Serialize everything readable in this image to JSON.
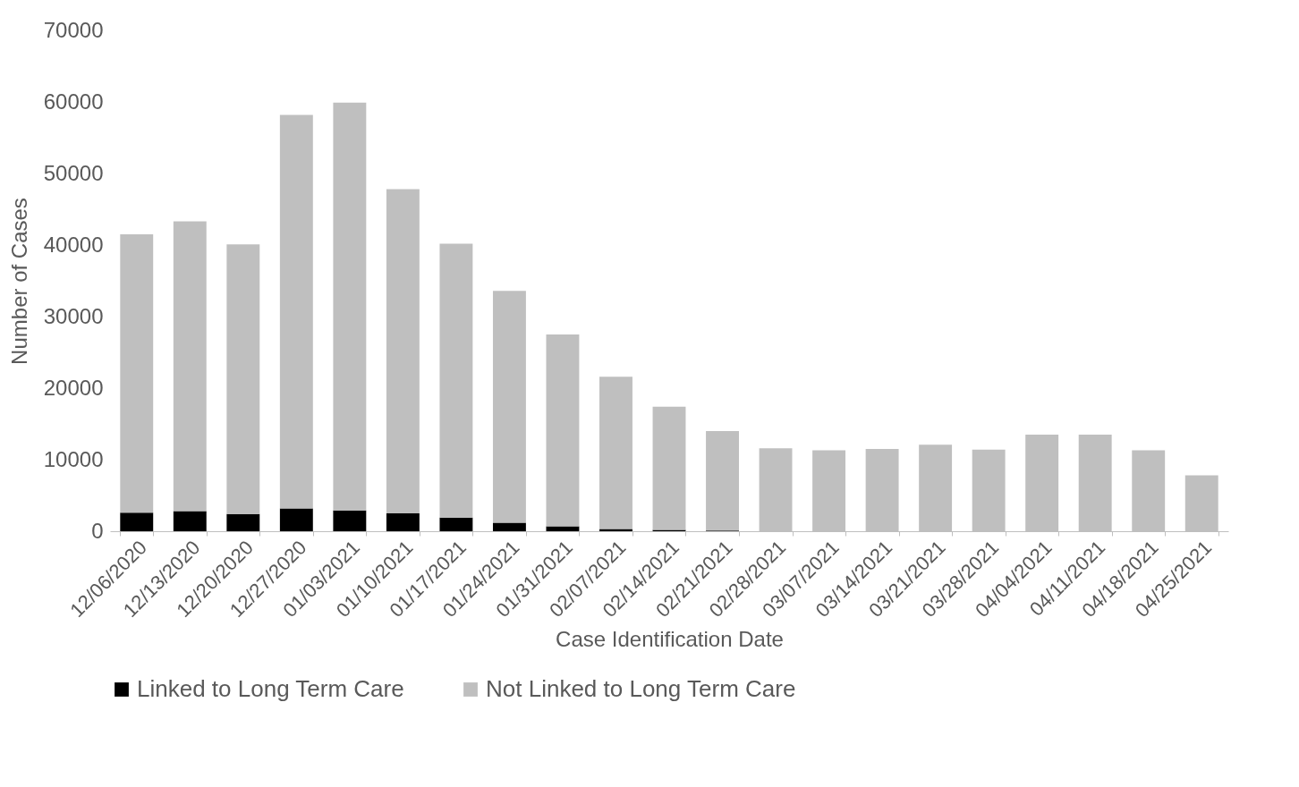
{
  "chart_data": {
    "type": "bar",
    "stacked": true,
    "xlabel": "Case Identification Date",
    "ylabel": "Number of Cases",
    "categories": [
      "12/06/2020",
      "12/13/2020",
      "12/20/2020",
      "12/27/2020",
      "01/03/2021",
      "01/10/2021",
      "01/17/2021",
      "01/24/2021",
      "01/31/2021",
      "02/07/2021",
      "02/14/2021",
      "02/21/2021",
      "02/28/2021",
      "03/07/2021",
      "03/14/2021",
      "03/21/2021",
      "03/28/2021",
      "04/04/2021",
      "04/11/2021",
      "04/18/2021",
      "04/25/2021"
    ],
    "series": [
      {
        "name": "Linked to Long Term Care",
        "color": "#000000",
        "values": [
          2600,
          2800,
          2400,
          3200,
          2900,
          2500,
          1900,
          1200,
          700,
          300,
          200,
          100,
          0,
          0,
          0,
          0,
          0,
          0,
          0,
          0,
          0
        ]
      },
      {
        "name": "Not Linked to Long Term Care",
        "color": "#bfbfbf",
        "values": [
          38900,
          40500,
          37700,
          55000,
          57000,
          45300,
          38300,
          32400,
          26800,
          21300,
          17200,
          13900,
          11600,
          11300,
          11500,
          12100,
          11400,
          13500,
          13500,
          11300,
          7800
        ]
      }
    ],
    "ylim": [
      0,
      70000
    ],
    "yticks": [
      0,
      10000,
      20000,
      30000,
      40000,
      50000,
      60000,
      70000
    ],
    "grid": false,
    "legend": "bottom"
  }
}
